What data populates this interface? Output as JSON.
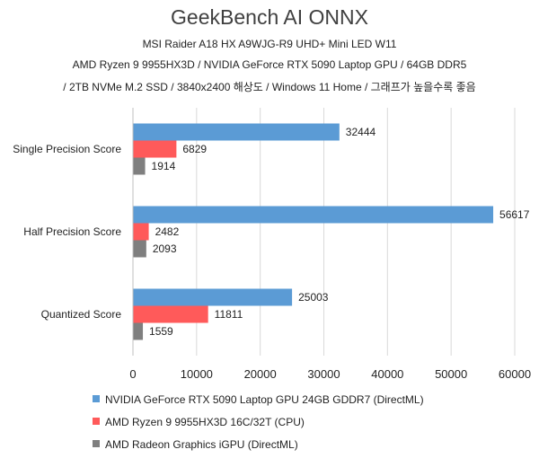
{
  "title": "GeekBench AI ONNX",
  "subtitle_lines": [
    "MSI Raider A18 HX A9WJG-R9 UHD+ Mini LED W11",
    "AMD Ryzen 9 9955HX3D / NVIDIA GeForce RTX 5090 Laptop GPU / 64GB DDR5",
    "/ 2TB NVMe M.2 SSD / 3840x2400 해상도 / Windows 11 Home / 그래프가 높을수록 좋음"
  ],
  "colors": {
    "nvidia": "#5b9bd5",
    "amd_cpu": "#ff5a5a",
    "amd_igpu": "#7f7f7f",
    "grid": "#d9d9d9"
  },
  "chart_data": {
    "type": "bar",
    "orientation": "horizontal",
    "title": "GeekBench AI ONNX",
    "categories": [
      "Single Precision Score",
      "Half Precision Score",
      "Quantized Score"
    ],
    "series": [
      {
        "name": "NVIDIA GeForce RTX 5090 Laptop GPU 24GB GDDR7 (DirectML)",
        "values": [
          32444,
          56617,
          25003
        ],
        "color": "#5b9bd5"
      },
      {
        "name": "AMD Ryzen 9 9955HX3D 16C/32T (CPU)",
        "values": [
          6829,
          2482,
          11811
        ],
        "color": "#ff5a5a"
      },
      {
        "name": "AMD Radeon Graphics iGPU (DirectML)",
        "values": [
          1914,
          2093,
          1559
        ],
        "color": "#7f7f7f"
      }
    ],
    "xlim": [
      0,
      60000
    ],
    "xticks": [
      0,
      10000,
      20000,
      30000,
      40000,
      50000,
      60000
    ],
    "grid": true,
    "legend_position": "bottom-left"
  }
}
